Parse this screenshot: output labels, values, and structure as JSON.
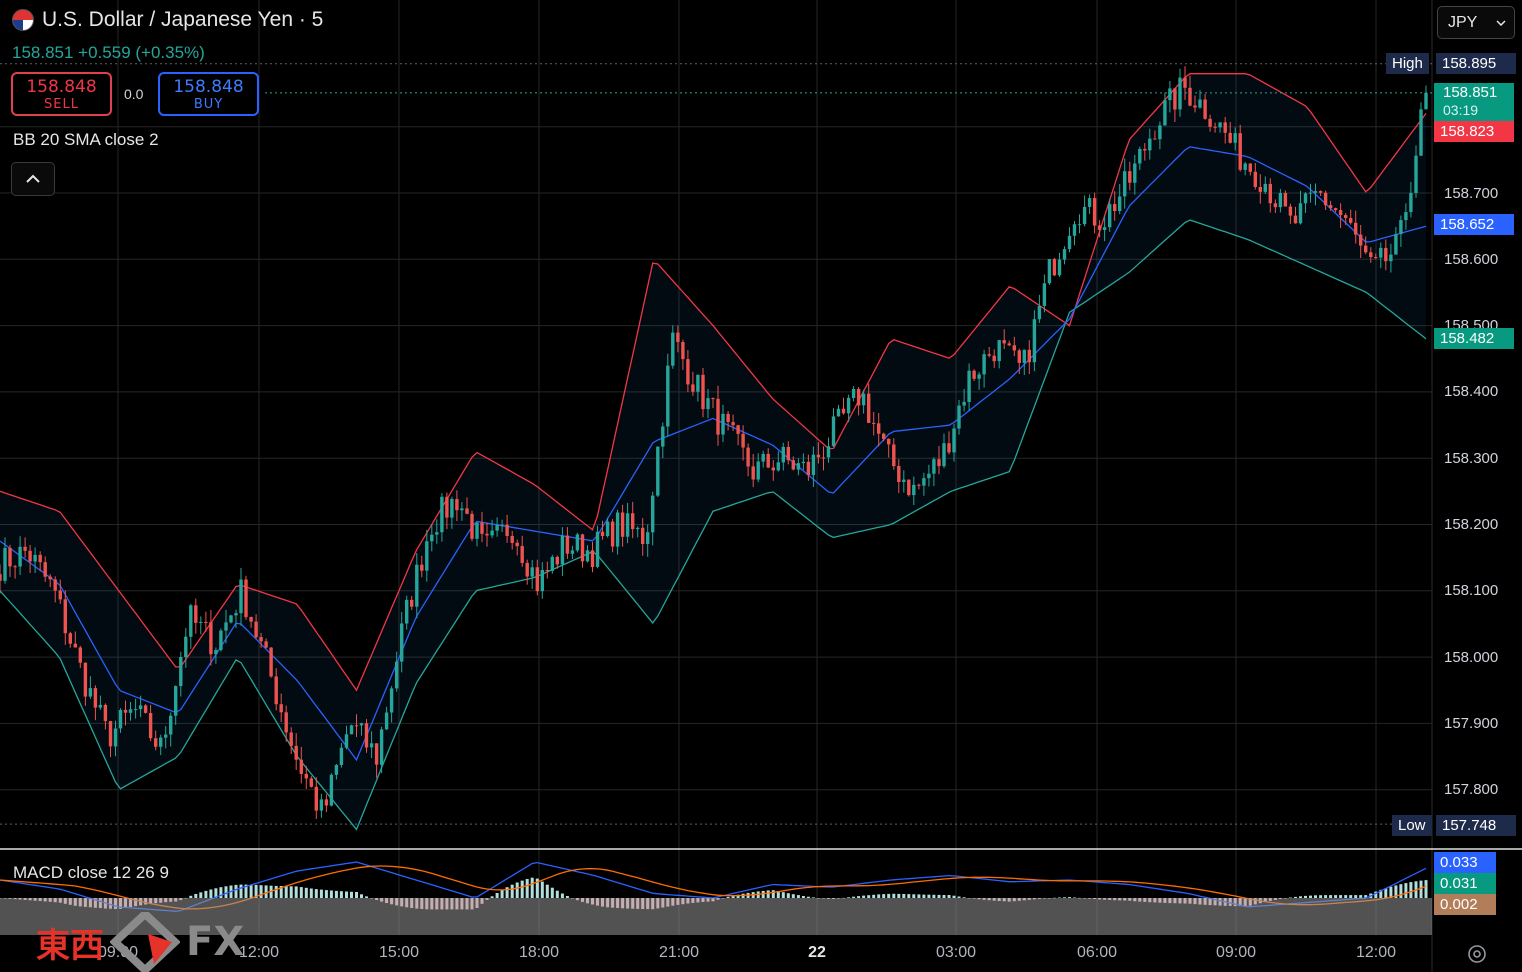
{
  "header": {
    "title": "U.S. Dollar / Japanese Yen · 5",
    "flag_icon": "us-japan-flag-icon",
    "change_line": "158.851 +0.559 (+0.35%)",
    "sell": {
      "price": "158.848",
      "label": "SELL"
    },
    "buy": {
      "price": "158.848",
      "label": "BUY"
    },
    "spread": "0.0",
    "currency_select": "JPY"
  },
  "indicators": {
    "bb_label": "BB 20 SMA close 2",
    "macd_label": "MACD close 12 26 9"
  },
  "price_axis": {
    "ticks": [
      "158.700",
      "158.600",
      "158.500",
      "158.400",
      "158.300",
      "158.200",
      "158.100",
      "158.000",
      "157.900",
      "157.800"
    ],
    "tags": {
      "high_label": "High",
      "high_value": "158.895",
      "last_price": "158.851",
      "countdown": "03:19",
      "bb_upper": "158.823",
      "bb_mid": "158.652",
      "bb_lower": "158.482",
      "low_label": "Low",
      "low_value": "157.748",
      "macd_line": "0.033",
      "macd_signal": "0.031",
      "macd_hist": "0.002"
    }
  },
  "time_axis": {
    "labels": [
      "09:00",
      "12:00",
      "15:00",
      "18:00",
      "21:00",
      "22",
      "03:00",
      "06:00",
      "09:00",
      "12:00"
    ]
  },
  "colors": {
    "up": "#26a69a",
    "down": "#ef5350",
    "bb_upper": "#f23645",
    "bb_basis": "#2962ff",
    "bb_lower": "#26a69a",
    "macd": "#2962ff",
    "signal": "#ff6d00"
  },
  "watermark": {
    "cn": "東西",
    "fx": "FX"
  },
  "chart_data": {
    "type": "candlestick",
    "title": "U.S. Dollar / Japanese Yen · 5",
    "x": [
      "09:00",
      "12:00",
      "15:00",
      "18:00",
      "21:00",
      "22",
      "03:00",
      "06:00",
      "09:00",
      "12:00"
    ],
    "close_path": [
      158.14,
      158.16,
      158.1,
      157.98,
      157.88,
      157.92,
      157.86,
      158.06,
      158.02,
      158.1,
      157.98,
      157.85,
      157.76,
      157.9,
      157.85,
      158.05,
      158.2,
      158.24,
      158.16,
      158.2,
      158.11,
      158.17,
      158.16,
      158.2,
      158.18,
      158.48,
      158.4,
      158.34,
      158.28,
      158.3,
      158.28,
      158.34,
      158.4,
      158.3,
      158.25,
      158.3,
      158.42,
      158.47,
      158.43,
      158.58,
      158.68,
      158.66,
      158.72,
      158.81,
      158.86,
      158.82,
      158.76,
      158.72,
      158.65,
      158.7,
      158.66,
      158.58,
      158.62,
      158.85
    ],
    "bb_upper_path": [
      158.25,
      158.22,
      158.1,
      157.98,
      158.11,
      158.08,
      157.95,
      158.16,
      158.31,
      158.26,
      158.19,
      158.6,
      158.5,
      158.39,
      158.31,
      158.48,
      158.45,
      158.56,
      158.5,
      158.78,
      158.88,
      158.88,
      158.83,
      158.7,
      158.82
    ],
    "bb_lower_path": [
      158.1,
      158.0,
      157.8,
      157.85,
      158.0,
      157.85,
      157.74,
      157.96,
      158.1,
      158.12,
      158.16,
      158.05,
      158.22,
      158.25,
      158.18,
      158.2,
      158.25,
      158.28,
      158.52,
      158.58,
      158.66,
      158.63,
      158.59,
      158.55,
      158.48
    ],
    "high": 158.895,
    "low": 157.748,
    "last": 158.851
  }
}
